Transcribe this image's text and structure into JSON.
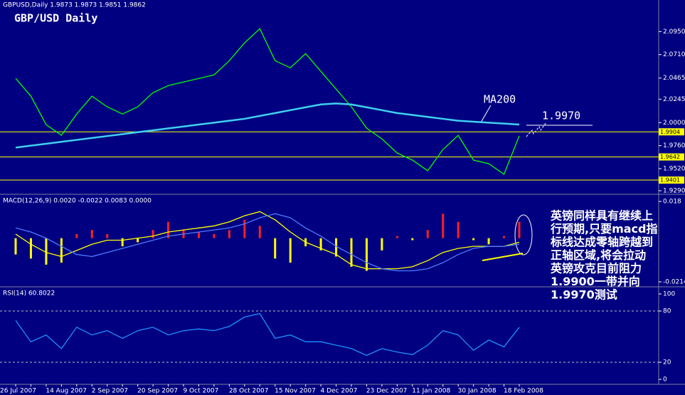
{
  "chart_data": [
    {
      "type": "line",
      "title": "GBP/USD Daily",
      "subtitle": "GBPUSD,Daily 1.9873 1.9873 1.9851 1.9862",
      "ylim": [
        1.926,
        2.122
      ],
      "yticks": [
        {
          "value": 2.095,
          "label": "2.0950"
        },
        {
          "value": 2.071,
          "label": "2.0710"
        },
        {
          "value": 2.0465,
          "label": "2.0465"
        },
        {
          "value": 2.0245,
          "label": "2.0245"
        },
        {
          "value": 2.0,
          "label": "2.0000"
        },
        {
          "value": 1.976,
          "label": "1.9760"
        },
        {
          "value": 1.952,
          "label": "1.9520"
        },
        {
          "value": 1.929,
          "label": "1.9290"
        }
      ],
      "levels": [
        1.9904,
        1.9642,
        1.9401
      ],
      "level_color": "#ffff00",
      "annotations": [
        "1.9970"
      ],
      "series": [
        {
          "color": "#00ff00",
          "values": [
            2.0461,
            2.0276,
            1.9979,
            1.9868,
            2.009,
            2.0276,
            2.0165,
            2.009,
            2.0165,
            2.0313,
            2.0387,
            2.0424,
            2.0461,
            2.0498,
            2.0646,
            2.0832,
            2.098,
            2.0646,
            2.0572,
            2.072,
            2.0535,
            2.035,
            2.0165,
            1.9942,
            1.9831,
            1.9683,
            1.9609,
            1.9498,
            1.972,
            1.9868,
            1.9609,
            1.9572,
            1.9461,
            1.9862
          ]
        },
        {
          "name": "MA200",
          "color": "#40d0f0",
          "values": [
            1.974,
            1.976,
            1.978,
            1.98,
            1.982,
            1.984,
            1.986,
            1.988,
            1.99,
            1.992,
            1.994,
            1.996,
            1.998,
            2.0,
            2.002,
            2.004,
            2.007,
            2.01,
            2.013,
            2.016,
            2.019,
            2.02,
            2.019,
            2.016,
            2.013,
            2.01,
            2.008,
            2.006,
            2.004,
            2.002,
            2.001,
            2.0,
            1.999,
            1.998
          ]
        }
      ]
    },
    {
      "type": "bar",
      "title": "MACD(12,26,9) 0.0020 -0.0022 0.0083 0.0000",
      "ylim": [
        -0.0228,
        0.0208
      ],
      "yticks": [
        0.018,
        -0.0214
      ],
      "color": "#ff2020",
      "negative_color": "#ffff00",
      "values": [
        -0.008,
        -0.01,
        -0.013,
        -0.012,
        0.002,
        0.004,
        0.002,
        -0.004,
        -0.002,
        0.004,
        0.008,
        0.004,
        0.003,
        0.002,
        0.004,
        0.009,
        0.006,
        -0.01,
        -0.012,
        -0.004,
        -0.006,
        -0.009,
        -0.014,
        -0.016,
        -0.006,
        0.001,
        -0.001,
        0.004,
        0.012,
        0.008,
        -0.001,
        -0.003,
        0.001,
        0.008
      ],
      "series": [
        {
          "color": "#ffff00",
          "values": [
            0.002,
            -0.003,
            -0.007,
            -0.009,
            -0.006,
            -0.003,
            -0.001,
            -0.001,
            0,
            0.001,
            0.003,
            0.004,
            0.005,
            0.006,
            0.008,
            0.011,
            0.013,
            0.009,
            0.003,
            -0.002,
            -0.005,
            -0.008,
            -0.013,
            -0.015,
            -0.015,
            -0.015,
            -0.014,
            -0.011,
            -0.007,
            -0.005,
            -0.004,
            -0.004,
            -0.004,
            -0.002
          ]
        },
        {
          "color": "#4a7cff",
          "values": [
            0.005,
            0.003,
            0,
            -0.004,
            -0.008,
            -0.009,
            -0.007,
            -0.005,
            -0.003,
            -0.001,
            0.001,
            0.002,
            0.003,
            0.004,
            0.005,
            0.007,
            0.01,
            0.012,
            0.01,
            0.005,
            0.001,
            -0.004,
            -0.008,
            -0.012,
            -0.015,
            -0.016,
            -0.016,
            -0.015,
            -0.012,
            -0.008,
            -0.005,
            -0.004,
            -0.004,
            -0.003
          ]
        }
      ],
      "note": [
        "英镑同样具有继续上",
        "行预期,只要macd指",
        "标线达成零轴跨越到",
        "正轴区域,将会拉动",
        "英镑攻克目前阻力",
        "1.9900一带并向",
        "1.9970测试"
      ]
    },
    {
      "type": "line",
      "title": "RSI(14) 60.8022",
      "ylim": [
        0,
        100
      ],
      "yticks": [
        100,
        80,
        20,
        0
      ],
      "levels": [
        80,
        20
      ],
      "categories": [
        "26 Jul 2007",
        null,
        null,
        "14 Aug 2007",
        null,
        null,
        "2 Sep 2007",
        null,
        null,
        "20 Sep 2007",
        null,
        null,
        "9 Oct 2007",
        null,
        null,
        "28 Oct 2007",
        null,
        null,
        "15 Nov 2007",
        null,
        null,
        "4 Dec 2007",
        null,
        null,
        "23 Dec 2007",
        null,
        null,
        "11 Jan 2008",
        null,
        null,
        "30 Jan 2008",
        null,
        null,
        "18 Feb 2008"
      ],
      "series": [
        {
          "color": "#1e90ff",
          "values": [
            69,
            44,
            52,
            36,
            61,
            52,
            57,
            48,
            57,
            61,
            52,
            57,
            59,
            57,
            62,
            73,
            77,
            48,
            52,
            44,
            44,
            40,
            36,
            28,
            36,
            32,
            29,
            40,
            57,
            52,
            34,
            46,
            38,
            61
          ]
        }
      ]
    }
  ]
}
